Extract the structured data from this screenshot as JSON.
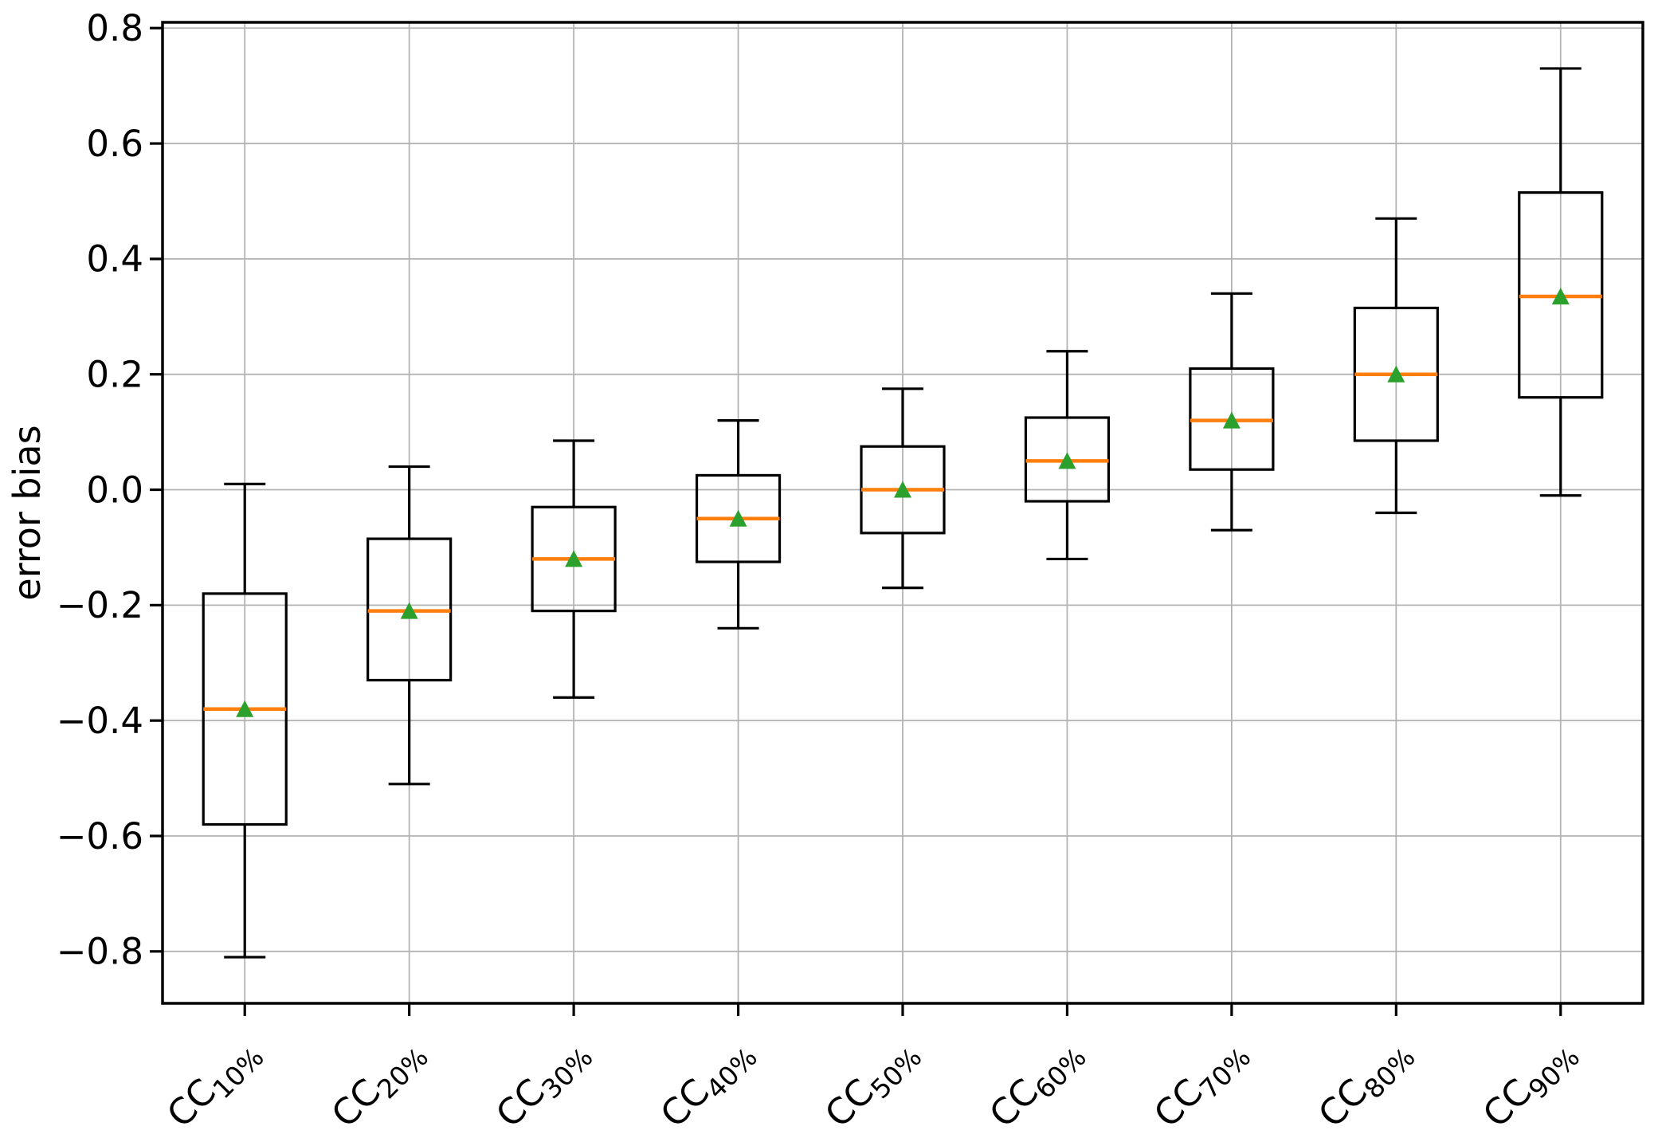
{
  "chart_data": {
    "type": "box",
    "title": "",
    "xlabel": "",
    "ylabel": "error bias",
    "ylim": [
      -0.89,
      0.81
    ],
    "yticks": [
      0.8,
      0.6,
      0.4,
      0.2,
      0.0,
      -0.2,
      -0.4,
      -0.6,
      -0.8
    ],
    "grid": true,
    "legend": null,
    "categories": [
      {
        "base": "CC",
        "sub": "10%"
      },
      {
        "base": "CC",
        "sub": "20%"
      },
      {
        "base": "CC",
        "sub": "30%"
      },
      {
        "base": "CC",
        "sub": "40%"
      },
      {
        "base": "CC",
        "sub": "50%"
      },
      {
        "base": "CC",
        "sub": "60%"
      },
      {
        "base": "CC",
        "sub": "70%"
      },
      {
        "base": "CC",
        "sub": "80%"
      },
      {
        "base": "CC",
        "sub": "90%"
      }
    ],
    "boxes": [
      {
        "label": "CC10%",
        "whislo": -0.81,
        "q1": -0.58,
        "med": -0.38,
        "mean": -0.38,
        "q3": -0.18,
        "whishi": 0.01
      },
      {
        "label": "CC20%",
        "whislo": -0.51,
        "q1": -0.33,
        "med": -0.21,
        "mean": -0.21,
        "q3": -0.085,
        "whishi": 0.04
      },
      {
        "label": "CC30%",
        "whislo": -0.36,
        "q1": -0.21,
        "med": -0.12,
        "mean": -0.12,
        "q3": -0.03,
        "whishi": 0.085
      },
      {
        "label": "CC40%",
        "whislo": -0.24,
        "q1": -0.125,
        "med": -0.05,
        "mean": -0.05,
        "q3": 0.025,
        "whishi": 0.12
      },
      {
        "label": "CC50%",
        "whislo": -0.17,
        "q1": -0.075,
        "med": 0.0,
        "mean": 0.0,
        "q3": 0.075,
        "whishi": 0.175
      },
      {
        "label": "CC60%",
        "whislo": -0.12,
        "q1": -0.02,
        "med": 0.05,
        "mean": 0.05,
        "q3": 0.125,
        "whishi": 0.24
      },
      {
        "label": "CC70%",
        "whislo": -0.07,
        "q1": 0.035,
        "med": 0.12,
        "mean": 0.12,
        "q3": 0.21,
        "whishi": 0.34
      },
      {
        "label": "CC80%",
        "whislo": -0.04,
        "q1": 0.085,
        "med": 0.2,
        "mean": 0.2,
        "q3": 0.315,
        "whishi": 0.47
      },
      {
        "label": "CC90%",
        "whislo": -0.01,
        "q1": 0.16,
        "med": 0.335,
        "mean": 0.335,
        "q3": 0.515,
        "whishi": 0.73
      }
    ],
    "colors": {
      "median": "#ff7f0e",
      "mean": "#2ca02c",
      "box_edge": "#000000",
      "grid": "#b3b3b3",
      "axis": "#000000",
      "background": "#ffffff"
    }
  }
}
